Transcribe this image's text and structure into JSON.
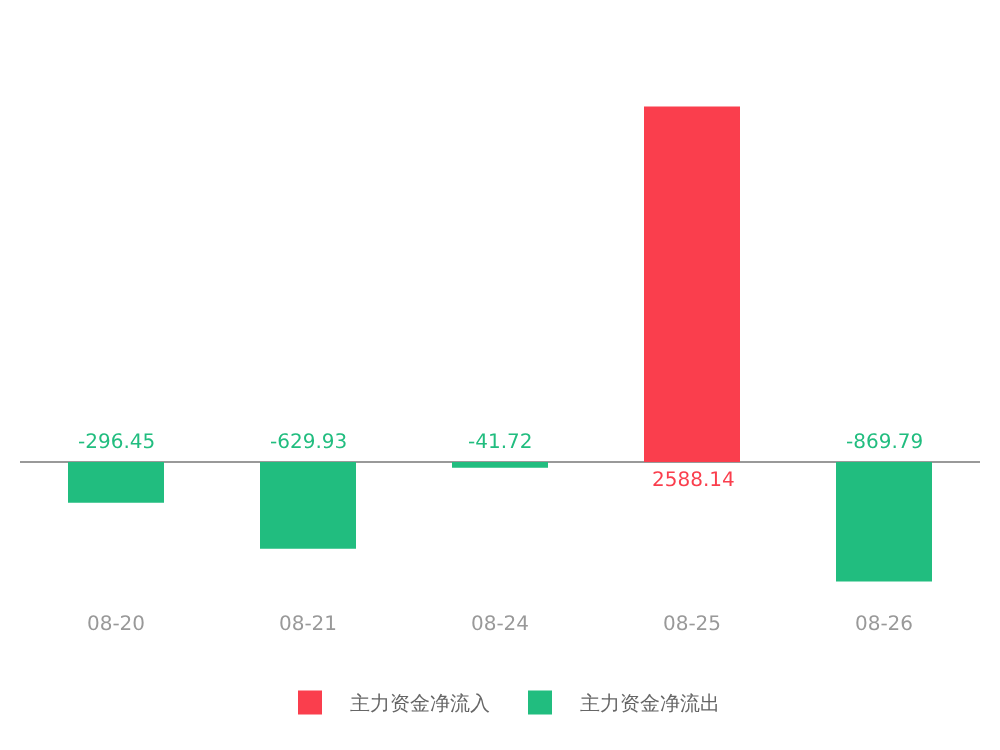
{
  "chart_data": {
    "type": "bar",
    "categories": [
      "08-20",
      "08-21",
      "08-24",
      "08-25",
      "08-26"
    ],
    "series": [
      {
        "name": "主力资金净流入",
        "color": "#fa3e4d",
        "values": [
          null,
          null,
          null,
          2588.14,
          null
        ]
      },
      {
        "name": "主力资金净流出",
        "color": "#21bd7f",
        "values": [
          -296.45,
          -629.93,
          -41.72,
          null,
          -869.79
        ]
      }
    ],
    "data_labels": true,
    "legend": "bottom",
    "grid": false
  }
}
